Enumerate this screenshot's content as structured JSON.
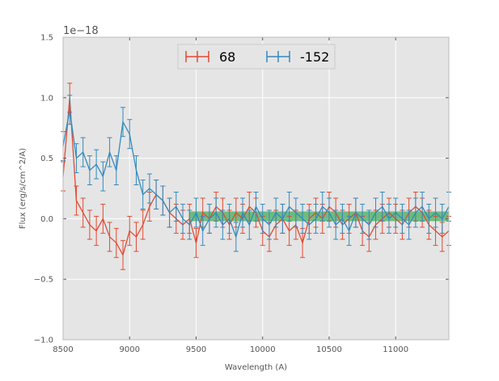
{
  "chart_data": {
    "type": "line",
    "title": "",
    "xlabel": "Wavelength (A)",
    "ylabel": "Flux (erg/s/cm^2/A)",
    "offset_label": "1e−18",
    "xlim": [
      8500,
      11400
    ],
    "ylim": [
      -1.0,
      1.5
    ],
    "y_scale_factor": "1e-18",
    "grid": true,
    "legend_position": "upper center",
    "xticks": [
      8500,
      9000,
      9500,
      10000,
      10500,
      11000
    ],
    "xtick_labels": [
      "8500",
      "9000",
      "9500",
      "10000",
      "10500",
      "11000"
    ],
    "yticks": [
      -1.0,
      -0.5,
      0.0,
      0.5,
      1.0,
      1.5
    ],
    "ytick_labels": [
      "−1.0",
      "−0.5",
      "0.0",
      "0.5",
      "1.0",
      "1.5"
    ],
    "colors": {
      "background": "#e5e5e5",
      "grid": "#ffffff",
      "series_68": "#e24a33",
      "series_-152": "#348abd",
      "band_fill": "#1b9e3a",
      "axis_text": "#555555"
    },
    "band": {
      "x_range": [
        9450,
        11400
      ],
      "y_range": [
        -0.02,
        0.06
      ]
    },
    "series": [
      {
        "name": "68",
        "color": "#e24a33",
        "x": [
          8500,
          8550,
          8600,
          8650,
          8700,
          8750,
          8800,
          8850,
          8900,
          8950,
          9000,
          9050,
          9100,
          9150,
          9200,
          9250,
          9300,
          9350,
          9400,
          9450,
          9500,
          9550,
          9600,
          9650,
          9700,
          9750,
          9800,
          9850,
          9900,
          9950,
          10000,
          10050,
          10100,
          10150,
          10200,
          10250,
          10300,
          10350,
          10400,
          10450,
          10500,
          10550,
          10600,
          10650,
          10700,
          10750,
          10800,
          10850,
          10900,
          10950,
          11000,
          11050,
          11100,
          11150,
          11200,
          11250,
          11300,
          11350,
          11400
        ],
        "y": [
          0.35,
          1.0,
          0.15,
          0.05,
          -0.05,
          -0.1,
          0.0,
          -0.15,
          -0.2,
          -0.3,
          -0.1,
          -0.15,
          -0.05,
          0.1,
          0.2,
          0.15,
          0.05,
          0.0,
          -0.05,
          0.0,
          -0.2,
          0.05,
          0.0,
          0.1,
          0.05,
          -0.05,
          0.05,
          0.0,
          0.1,
          0.05,
          -0.1,
          -0.15,
          -0.05,
          0.0,
          -0.1,
          -0.05,
          -0.2,
          0.0,
          0.05,
          0.0,
          0.1,
          0.05,
          -0.05,
          0.0,
          0.05,
          -0.1,
          -0.15,
          -0.05,
          0.0,
          0.05,
          0.0,
          -0.05,
          0.05,
          0.1,
          0.05,
          -0.05,
          -0.1,
          -0.15,
          -0.1
        ],
        "yerr": 0.12
      },
      {
        "name": "-152",
        "color": "#348abd",
        "x": [
          8500,
          8550,
          8600,
          8650,
          8700,
          8750,
          8800,
          8850,
          8900,
          8950,
          9000,
          9050,
          9100,
          9150,
          9200,
          9250,
          9300,
          9350,
          9400,
          9450,
          9500,
          9550,
          9600,
          9650,
          9700,
          9750,
          9800,
          9850,
          9900,
          9950,
          10000,
          10050,
          10100,
          10150,
          10200,
          10250,
          10300,
          10350,
          10400,
          10450,
          10500,
          10550,
          10600,
          10650,
          10700,
          10750,
          10800,
          10850,
          10900,
          10950,
          11000,
          11050,
          11100,
          11150,
          11200,
          11250,
          11300,
          11350,
          11400
        ],
        "y": [
          0.6,
          0.9,
          0.5,
          0.55,
          0.4,
          0.45,
          0.35,
          0.55,
          0.4,
          0.8,
          0.7,
          0.4,
          0.2,
          0.25,
          0.2,
          0.15,
          0.05,
          0.1,
          0.0,
          -0.05,
          0.05,
          -0.1,
          0.0,
          0.05,
          -0.05,
          0.0,
          -0.15,
          0.05,
          -0.05,
          0.1,
          0.0,
          -0.05,
          0.05,
          0.0,
          0.1,
          0.05,
          0.0,
          -0.05,
          0.0,
          0.1,
          0.05,
          -0.05,
          0.0,
          -0.1,
          0.05,
          0.0,
          -0.05,
          0.05,
          0.1,
          0.0,
          0.05,
          0.0,
          -0.05,
          0.05,
          0.1,
          0.0,
          0.05,
          0.0,
          0.1
        ],
        "yerr": 0.12
      }
    ]
  }
}
